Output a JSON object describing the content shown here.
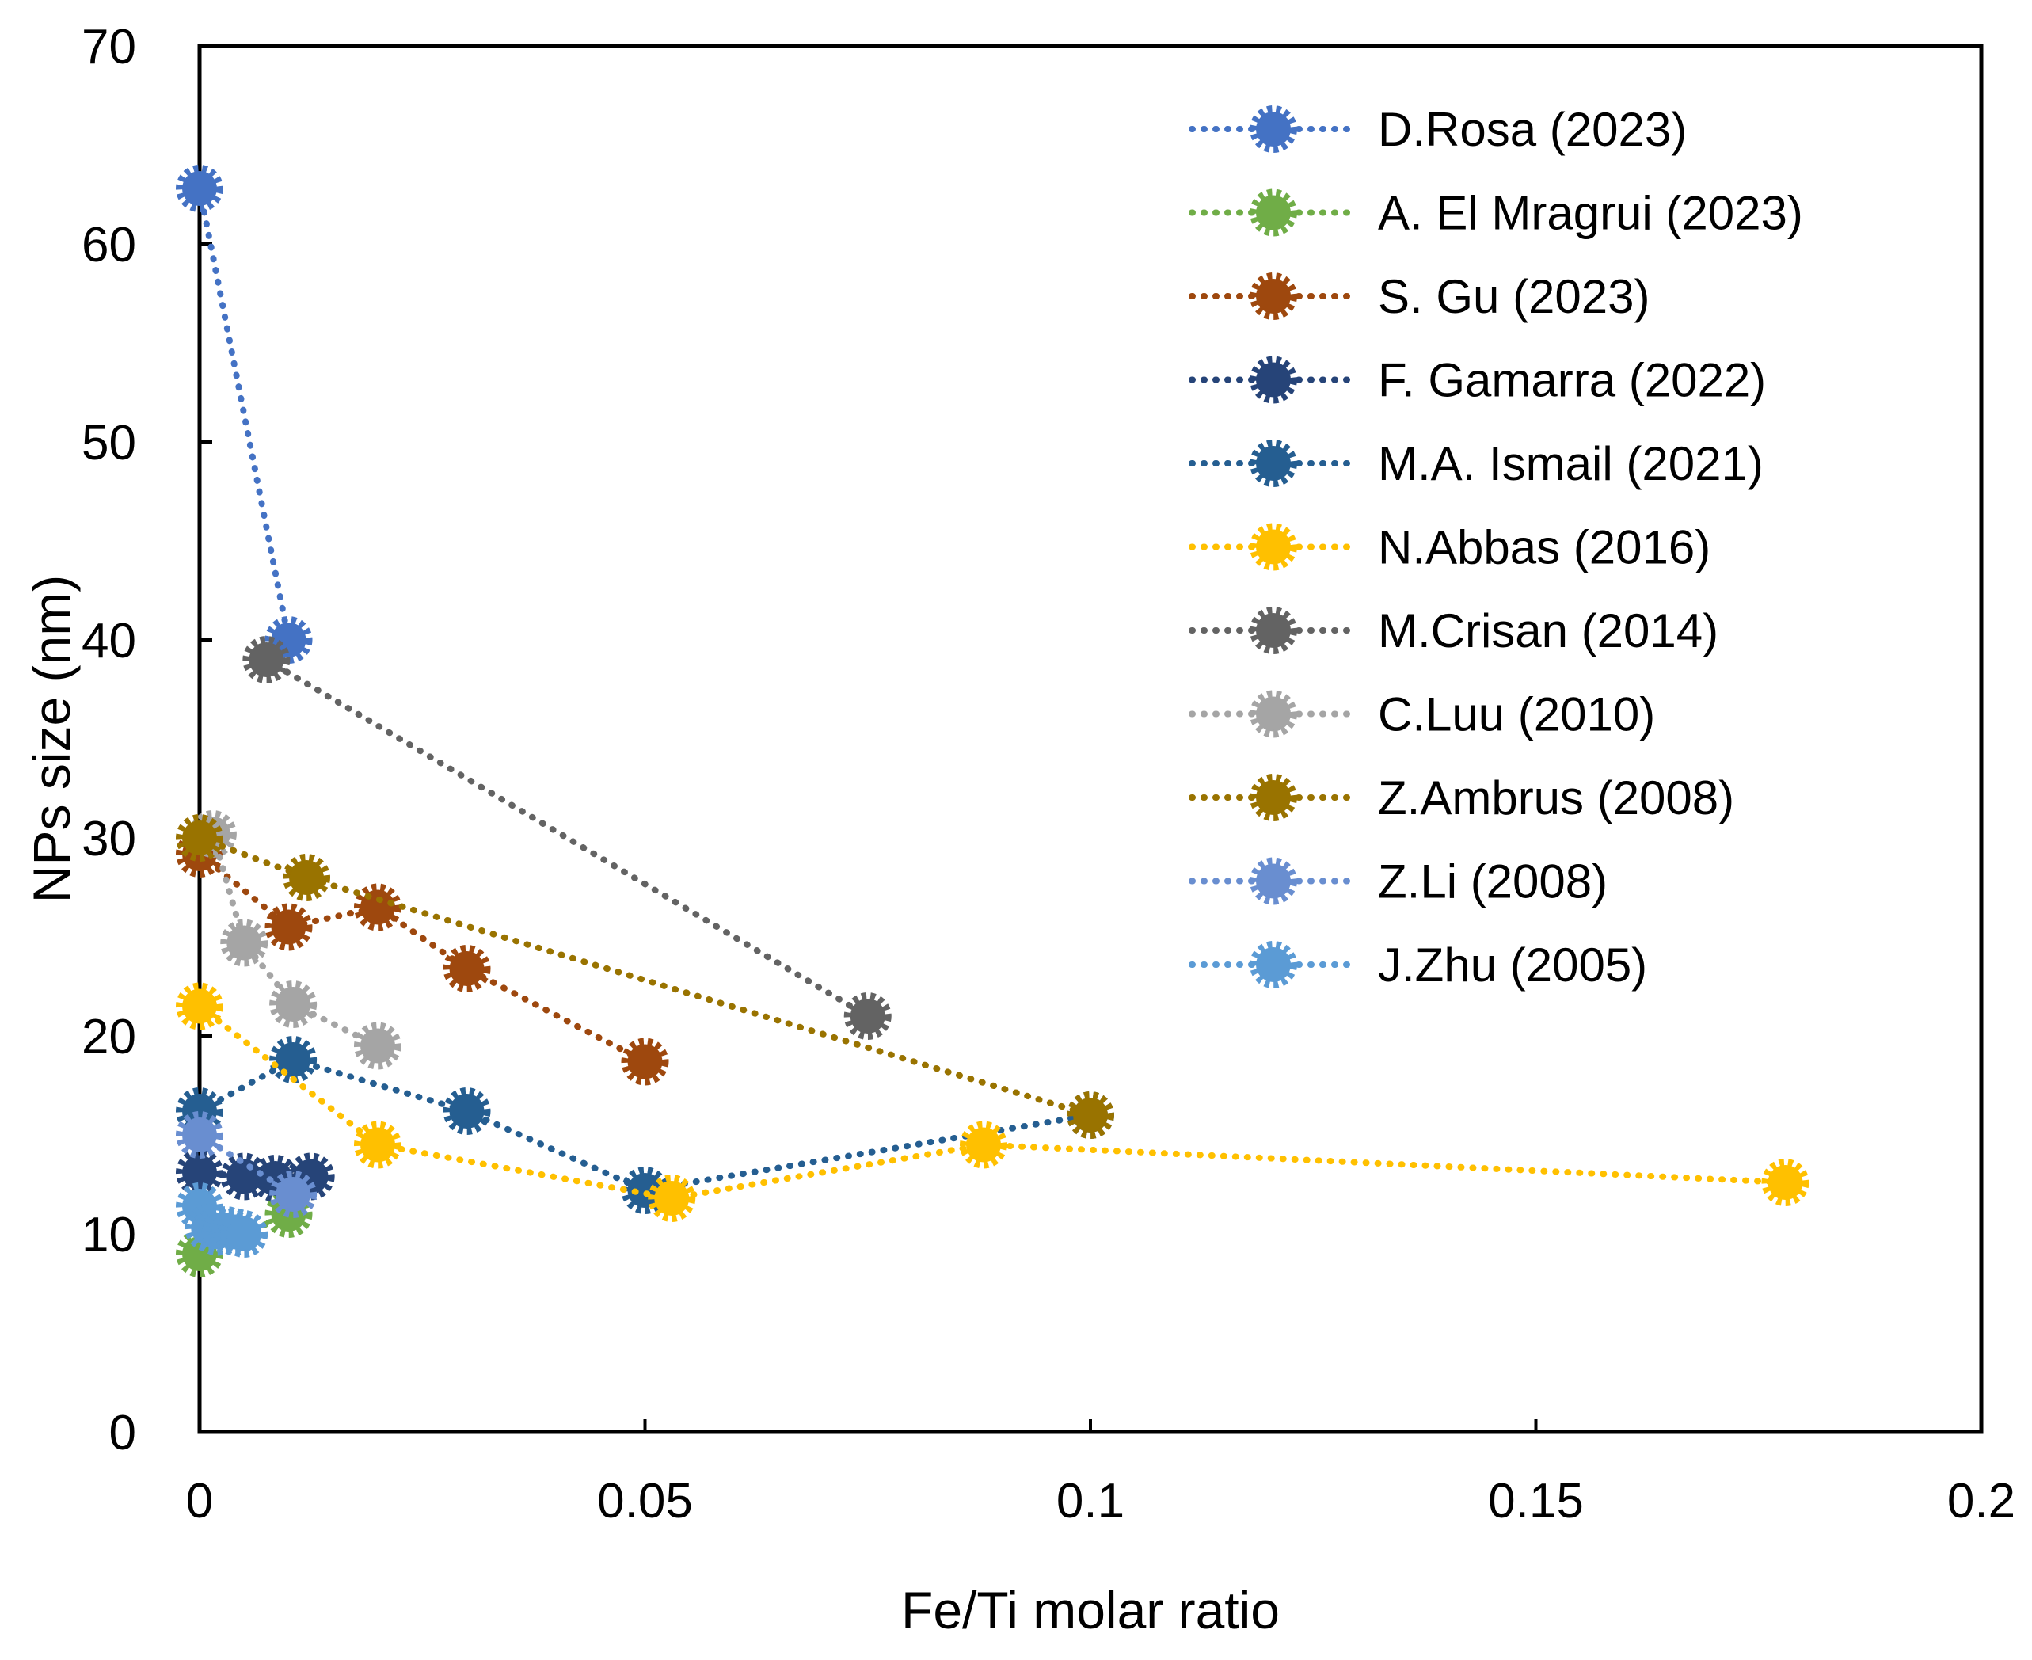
{
  "chart_data": {
    "type": "scatter",
    "xlabel": "Fe/Ti molar ratio",
    "ylabel": "NPs size (nm)",
    "xlim": [
      0,
      0.2
    ],
    "ylim": [
      0,
      70
    ],
    "xticks": [
      0,
      0.05,
      0.1,
      0.15,
      0.2
    ],
    "xtick_labels": [
      "0",
      "0.05",
      "0.1",
      "0.15",
      "0.2"
    ],
    "yticks": [
      0,
      10,
      20,
      30,
      40,
      50,
      60,
      70
    ],
    "ytick_labels": [
      "0",
      "10",
      "20",
      "30",
      "40",
      "50",
      "60",
      "70"
    ],
    "grid": false,
    "legend_position": "top-right",
    "line_style": "dotted",
    "series": [
      {
        "name": "D.Rosa (2023)",
        "color": "#4472C4",
        "x": [
          0,
          0.01
        ],
        "y": [
          62.8,
          40
        ]
      },
      {
        "name": "A. El Mragrui (2023)",
        "color": "#70AD47",
        "x": [
          0,
          0.01
        ],
        "y": [
          9,
          11
        ]
      },
      {
        "name": "S. Gu (2023)",
        "color": "#9E480E",
        "x": [
          0,
          0.01,
          0.02,
          0.03,
          0.05
        ],
        "y": [
          29.2,
          25.5,
          26.5,
          23.4,
          18.7
        ]
      },
      {
        "name": "F. Gamarra (2022)",
        "color": "#264478",
        "x": [
          0,
          0.005,
          0.0085,
          0.0125
        ],
        "y": [
          13.1,
          12.9,
          12.8,
          12.9
        ]
      },
      {
        "name": "M.A. Ismail (2021)",
        "color": "#255E91",
        "x": [
          0,
          0.0105,
          0.03,
          0.05,
          0.1
        ],
        "y": [
          16.2,
          18.8,
          16.2,
          12.2,
          16
        ]
      },
      {
        "name": "N.Abbas  (2016)",
        "color": "#FFC000",
        "x": [
          0,
          0.02,
          0.053,
          0.088,
          0.178
        ],
        "y": [
          21.5,
          14.5,
          11.8,
          14.5,
          12.6
        ]
      },
      {
        "name": "M.Crisan (2014)",
        "color": "#636363",
        "x": [
          0.0075,
          0.075
        ],
        "y": [
          39,
          21
        ]
      },
      {
        "name": "C.Luu (2010)",
        "color": "#A5A5A5",
        "x": [
          0.0015,
          0.005,
          0.0105,
          0.02
        ],
        "y": [
          30.2,
          24.7,
          21.6,
          19.5
        ]
      },
      {
        "name": "Z.Ambrus (2008)",
        "color": "#997300",
        "x": [
          0,
          0.012,
          0.1
        ],
        "y": [
          30,
          28,
          16
        ]
      },
      {
        "name": "Z.Li (2008)",
        "color": "#698ED0",
        "x": [
          0,
          0.0105
        ],
        "y": [
          15,
          12
        ]
      },
      {
        "name": "J.Zhu  (2005)",
        "color": "#5B9BD5",
        "x": [
          0,
          0.001,
          0.002,
          0.003,
          0.004,
          0.005
        ],
        "y": [
          11.4,
          10.3,
          10.1,
          10.2,
          10.1,
          10
        ]
      }
    ]
  }
}
